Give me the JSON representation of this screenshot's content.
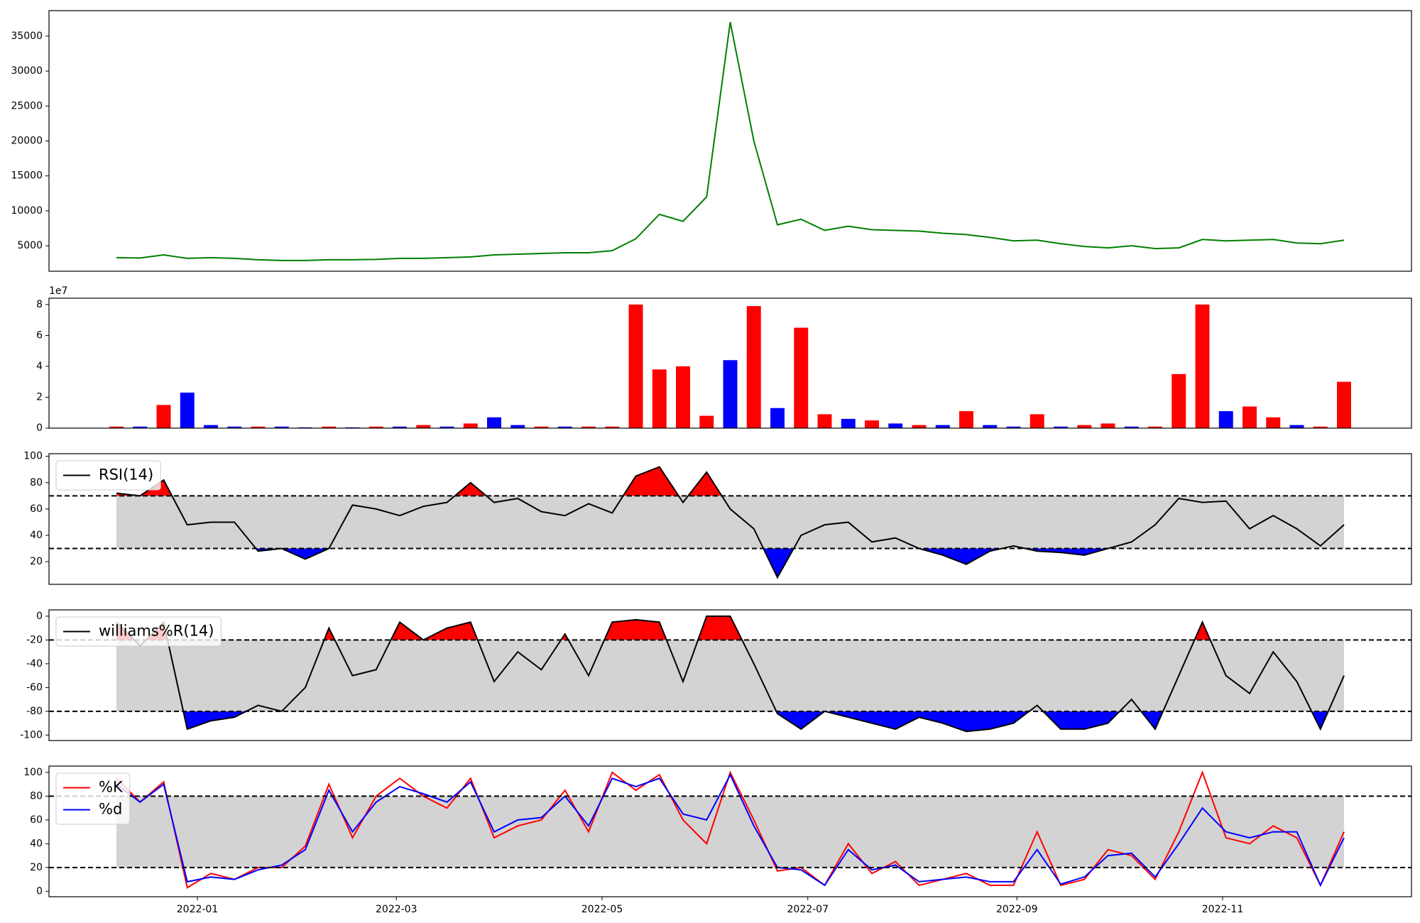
{
  "chart_data": [
    {
      "type": "line",
      "x": [
        "2021-12-08",
        "2021-12-15",
        "2021-12-22",
        "2021-12-29",
        "2022-01-05",
        "2022-01-12",
        "2022-01-19",
        "2022-01-26",
        "2022-02-02",
        "2022-02-09",
        "2022-02-16",
        "2022-02-23",
        "2022-03-02",
        "2022-03-09",
        "2022-03-16",
        "2022-03-23",
        "2022-03-30",
        "2022-04-06",
        "2022-04-13",
        "2022-04-20",
        "2022-04-27",
        "2022-05-04",
        "2022-05-11",
        "2022-05-18",
        "2022-05-25",
        "2022-06-01",
        "2022-06-08",
        "2022-06-15",
        "2022-06-22",
        "2022-06-29",
        "2022-07-06",
        "2022-07-13",
        "2022-07-20",
        "2022-07-27",
        "2022-08-03",
        "2022-08-10",
        "2022-08-17",
        "2022-08-24",
        "2022-08-31",
        "2022-09-07",
        "2022-09-14",
        "2022-09-21",
        "2022-09-28",
        "2022-10-05",
        "2022-10-12",
        "2022-10-19",
        "2022-10-26",
        "2022-11-02",
        "2022-11-09",
        "2022-11-16",
        "2022-11-23",
        "2022-11-30",
        "2022-12-07"
      ],
      "xlim": [
        "2021-11-18",
        "2022-12-27"
      ],
      "ylim": [
        1360,
        38640
      ],
      "yticks": [
        5000,
        10000,
        15000,
        20000,
        25000,
        30000,
        35000
      ],
      "series": [
        {
          "color": "green",
          "values": [
            3300,
            3250,
            3700,
            3200,
            3300,
            3200,
            3000,
            2900,
            2900,
            3000,
            3000,
            3050,
            3200,
            3200,
            3300,
            3400,
            3700,
            3800,
            3900,
            4000,
            4000,
            4300,
            6000,
            9500,
            8500,
            12000,
            37000,
            20000,
            8000,
            8800,
            7200,
            7800,
            7300,
            7200,
            7100,
            6800,
            6600,
            6200,
            5700,
            5800,
            5300,
            4900,
            4700,
            5000,
            4600,
            4700,
            5900,
            5700,
            5800,
            5900,
            5400,
            5300,
            5800
          ]
        }
      ]
    },
    {
      "type": "bar",
      "x": [
        "2021-12-08",
        "2021-12-15",
        "2021-12-22",
        "2021-12-29",
        "2022-01-05",
        "2022-01-12",
        "2022-01-19",
        "2022-01-26",
        "2022-02-02",
        "2022-02-09",
        "2022-02-16",
        "2022-02-23",
        "2022-03-02",
        "2022-03-09",
        "2022-03-16",
        "2022-03-23",
        "2022-03-30",
        "2022-04-06",
        "2022-04-13",
        "2022-04-20",
        "2022-04-27",
        "2022-05-04",
        "2022-05-11",
        "2022-05-18",
        "2022-05-25",
        "2022-06-01",
        "2022-06-08",
        "2022-06-15",
        "2022-06-22",
        "2022-06-29",
        "2022-07-06",
        "2022-07-13",
        "2022-07-20",
        "2022-07-27",
        "2022-08-03",
        "2022-08-10",
        "2022-08-17",
        "2022-08-24",
        "2022-08-31",
        "2022-09-07",
        "2022-09-14",
        "2022-09-21",
        "2022-09-28",
        "2022-10-05",
        "2022-10-12",
        "2022-10-19",
        "2022-10-26",
        "2022-11-02",
        "2022-11-09",
        "2022-11-16",
        "2022-11-23",
        "2022-11-30",
        "2022-12-07"
      ],
      "xlim": [
        "2021-11-18",
        "2022-12-27"
      ],
      "ylim": [
        0,
        8.41
      ],
      "yticks": [
        0,
        2,
        4,
        6,
        8
      ],
      "offset_label": "1e7",
      "values": [
        0.1,
        0.1,
        1.5,
        2.3,
        0.2,
        0.1,
        0.1,
        0.1,
        0.05,
        0.1,
        0.05,
        0.1,
        0.1,
        0.2,
        0.1,
        0.3,
        0.7,
        0.2,
        0.1,
        0.1,
        0.1,
        0.1,
        8.0,
        3.8,
        4.0,
        0.8,
        4.4,
        7.9,
        1.3,
        6.5,
        0.9,
        0.6,
        0.5,
        0.3,
        0.2,
        0.2,
        1.1,
        0.2,
        0.1,
        0.9,
        0.1,
        0.2,
        0.3,
        0.1,
        0.1,
        3.5,
        8.0,
        1.1,
        1.4,
        0.7,
        0.2,
        0.1,
        3.0
      ],
      "colors": [
        "red",
        "blue",
        "red",
        "blue",
        "blue",
        "blue",
        "red",
        "blue",
        "blue",
        "red",
        "blue",
        "red",
        "blue",
        "red",
        "blue",
        "red",
        "blue",
        "blue",
        "red",
        "blue",
        "red",
        "red",
        "red",
        "red",
        "red",
        "red",
        "blue",
        "red",
        "blue",
        "red",
        "red",
        "blue",
        "red",
        "blue",
        "red",
        "blue",
        "red",
        "blue",
        "blue",
        "red",
        "blue",
        "red",
        "red",
        "blue",
        "red",
        "red",
        "red",
        "blue",
        "red",
        "red",
        "blue",
        "red",
        "red"
      ]
    },
    {
      "type": "line",
      "x": [
        "2021-12-08",
        "2021-12-15",
        "2021-12-22",
        "2021-12-29",
        "2022-01-05",
        "2022-01-12",
        "2022-01-19",
        "2022-01-26",
        "2022-02-02",
        "2022-02-09",
        "2022-02-16",
        "2022-02-23",
        "2022-03-02",
        "2022-03-09",
        "2022-03-16",
        "2022-03-23",
        "2022-03-30",
        "2022-04-06",
        "2022-04-13",
        "2022-04-20",
        "2022-04-27",
        "2022-05-04",
        "2022-05-11",
        "2022-05-18",
        "2022-05-25",
        "2022-06-01",
        "2022-06-08",
        "2022-06-15",
        "2022-06-22",
        "2022-06-29",
        "2022-07-06",
        "2022-07-13",
        "2022-07-20",
        "2022-07-27",
        "2022-08-03",
        "2022-08-10",
        "2022-08-17",
        "2022-08-24",
        "2022-08-31",
        "2022-09-07",
        "2022-09-14",
        "2022-09-21",
        "2022-09-28",
        "2022-10-05",
        "2022-10-12",
        "2022-10-19",
        "2022-10-26",
        "2022-11-02",
        "2022-11-09",
        "2022-11-16",
        "2022-11-23",
        "2022-11-30",
        "2022-12-07"
      ],
      "xlim": [
        "2021-11-18",
        "2022-12-27"
      ],
      "ylim": [
        2.8,
        102
      ],
      "yticks": [
        20,
        40,
        60,
        80,
        100
      ],
      "thresholds": [
        70,
        30
      ],
      "band_color": "#d3d3d3",
      "fill_above_color": "red",
      "fill_below_color": "blue",
      "legend": "upper left",
      "series": [
        {
          "name": "RSI(14)",
          "color": "black",
          "values": [
            72,
            70,
            82,
            48,
            50,
            50,
            28,
            30,
            22,
            30,
            63,
            60,
            55,
            62,
            65,
            80,
            65,
            68,
            58,
            55,
            64,
            57,
            85,
            92,
            65,
            88,
            60,
            45,
            8,
            40,
            48,
            50,
            35,
            38,
            30,
            25,
            18,
            28,
            32,
            28,
            27,
            25,
            30,
            35,
            48,
            68,
            65,
            66,
            45,
            55,
            45,
            32,
            48
          ]
        }
      ]
    },
    {
      "type": "line",
      "x": [
        "2021-12-08",
        "2021-12-15",
        "2021-12-22",
        "2021-12-29",
        "2022-01-05",
        "2022-01-12",
        "2022-01-19",
        "2022-01-26",
        "2022-02-02",
        "2022-02-09",
        "2022-02-16",
        "2022-02-23",
        "2022-03-02",
        "2022-03-09",
        "2022-03-16",
        "2022-03-23",
        "2022-03-30",
        "2022-04-06",
        "2022-04-13",
        "2022-04-20",
        "2022-04-27",
        "2022-05-04",
        "2022-05-11",
        "2022-05-18",
        "2022-05-25",
        "2022-06-01",
        "2022-06-08",
        "2022-06-15",
        "2022-06-22",
        "2022-06-29",
        "2022-07-06",
        "2022-07-13",
        "2022-07-20",
        "2022-07-27",
        "2022-08-03",
        "2022-08-10",
        "2022-08-17",
        "2022-08-24",
        "2022-08-31",
        "2022-09-07",
        "2022-09-14",
        "2022-09-21",
        "2022-09-28",
        "2022-10-05",
        "2022-10-12",
        "2022-10-19",
        "2022-10-26",
        "2022-11-02",
        "2022-11-09",
        "2022-11-16",
        "2022-11-23",
        "2022-11-30",
        "2022-12-07"
      ],
      "xlim": [
        "2021-11-18",
        "2022-12-27"
      ],
      "ylim": [
        -104.6,
        5.3
      ],
      "yticks": [
        -100,
        -80,
        -60,
        -40,
        -20,
        0
      ],
      "thresholds": [
        -20,
        -80
      ],
      "band_color": "#d3d3d3",
      "fill_above_color": "red",
      "fill_below_color": "blue",
      "legend": "upper left",
      "series": [
        {
          "name": "williams%R(14)",
          "color": "black",
          "values": [
            -5,
            -25,
            -5,
            -95,
            -88,
            -85,
            -75,
            -80,
            -60,
            -10,
            -50,
            -45,
            -5,
            -20,
            -10,
            -5,
            -55,
            -30,
            -45,
            -15,
            -50,
            -5,
            -3,
            -5,
            -55,
            0,
            0,
            -40,
            -82,
            -95,
            -80,
            -85,
            -90,
            -95,
            -85,
            -90,
            -97,
            -95,
            -90,
            -75,
            -95,
            -95,
            -90,
            -70,
            -95,
            -50,
            -5,
            -50,
            -65,
            -30,
            -55,
            -95,
            -50
          ]
        }
      ]
    },
    {
      "type": "line",
      "x": [
        "2021-12-08",
        "2021-12-15",
        "2021-12-22",
        "2021-12-29",
        "2022-01-05",
        "2022-01-12",
        "2022-01-19",
        "2022-01-26",
        "2022-02-02",
        "2022-02-09",
        "2022-02-16",
        "2022-02-23",
        "2022-03-02",
        "2022-03-09",
        "2022-03-16",
        "2022-03-23",
        "2022-03-30",
        "2022-04-06",
        "2022-04-13",
        "2022-04-20",
        "2022-04-27",
        "2022-05-04",
        "2022-05-11",
        "2022-05-18",
        "2022-05-25",
        "2022-06-01",
        "2022-06-08",
        "2022-06-15",
        "2022-06-22",
        "2022-06-29",
        "2022-07-06",
        "2022-07-13",
        "2022-07-20",
        "2022-07-27",
        "2022-08-03",
        "2022-08-10",
        "2022-08-17",
        "2022-08-24",
        "2022-08-31",
        "2022-09-07",
        "2022-09-14",
        "2022-09-21",
        "2022-09-28",
        "2022-10-05",
        "2022-10-12",
        "2022-10-19",
        "2022-10-26",
        "2022-11-02",
        "2022-11-09",
        "2022-11-16",
        "2022-11-23",
        "2022-11-30",
        "2022-12-07"
      ],
      "xlim": [
        "2021-11-18",
        "2022-12-27"
      ],
      "xticks": [
        {
          "value": "2022-01-01",
          "label": "2022-01"
        },
        {
          "value": "2022-03-01",
          "label": "2022-03"
        },
        {
          "value": "2022-05-01",
          "label": "2022-05"
        },
        {
          "value": "2022-07-01",
          "label": "2022-07"
        },
        {
          "value": "2022-09-01",
          "label": "2022-09"
        },
        {
          "value": "2022-11-01",
          "label": "2022-11"
        }
      ],
      "ylim": [
        -4.6,
        105.3
      ],
      "yticks": [
        0,
        20,
        40,
        60,
        80,
        100
      ],
      "thresholds": [
        80,
        20
      ],
      "band_color": "#d3d3d3",
      "legend": "upper left",
      "series": [
        {
          "name": "%K",
          "color": "red",
          "values": [
            95,
            75,
            92,
            3,
            15,
            10,
            20,
            20,
            38,
            90,
            45,
            80,
            95,
            80,
            70,
            95,
            45,
            55,
            60,
            85,
            50,
            100,
            85,
            98,
            60,
            40,
            100,
            60,
            17,
            20,
            5,
            40,
            15,
            25,
            5,
            10,
            15,
            5,
            5,
            50,
            5,
            10,
            35,
            30,
            10,
            50,
            100,
            45,
            40,
            55,
            45,
            5,
            50
          ]
        },
        {
          "name": "%d",
          "color": "blue",
          "values": [
            90,
            75,
            90,
            8,
            12,
            10,
            18,
            22,
            35,
            85,
            50,
            75,
            88,
            82,
            75,
            92,
            50,
            60,
            62,
            80,
            55,
            95,
            88,
            95,
            65,
            60,
            98,
            55,
            20,
            18,
            5,
            35,
            18,
            22,
            8,
            10,
            12,
            8,
            8,
            35,
            6,
            12,
            30,
            32,
            12,
            40,
            70,
            50,
            45,
            50,
            50,
            5,
            45
          ]
        }
      ]
    }
  ]
}
